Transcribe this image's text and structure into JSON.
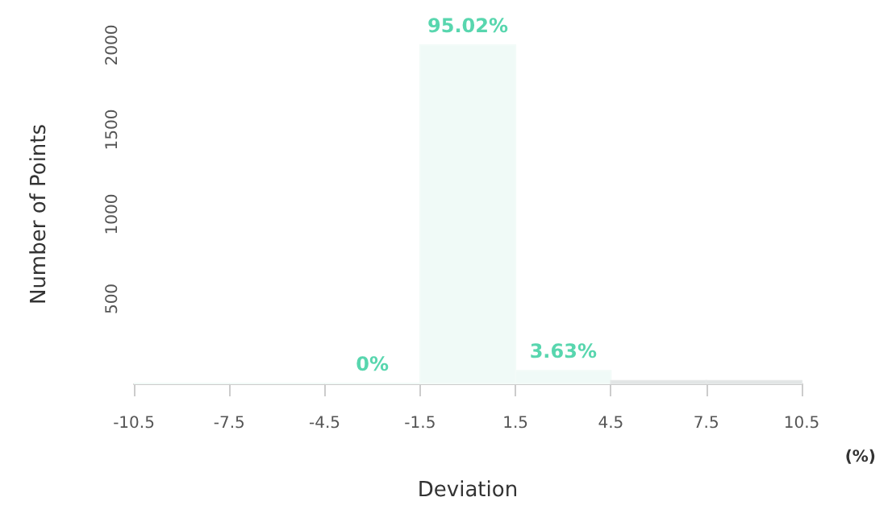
{
  "chart_data": {
    "type": "histogram",
    "xlabel": "Deviation",
    "ylabel": "Number of Points",
    "bins": [
      -10.5,
      -7.5,
      -4.5,
      -1.5,
      1.5,
      4.5,
      7.5,
      10.5
    ],
    "values": [
      0,
      0,
      0,
      2000,
      75,
      15,
      15
    ],
    "colors": [
      "#f0faf7",
      "#f0faf7",
      "#f0faf7",
      "#f0faf7",
      "#f0faf7",
      "#dfe3e3",
      "#dfe3e3"
    ],
    "xlim": [
      -10.5,
      10.5
    ],
    "xticks": [
      -10.5,
      -7.5,
      -4.5,
      -1.5,
      1.5,
      4.5,
      7.5,
      10.5
    ],
    "ylim": [
      0,
      2000
    ],
    "yticks": [
      500,
      1000,
      1500,
      2000
    ],
    "grid": false,
    "annotations": [
      {
        "text": "0%",
        "x": -3,
        "y": 0
      },
      {
        "text": "95.02%",
        "x": 0,
        "y": 2000
      },
      {
        "text": "3.63%",
        "x": 3,
        "y": 75
      },
      "(%)"
    ]
  }
}
